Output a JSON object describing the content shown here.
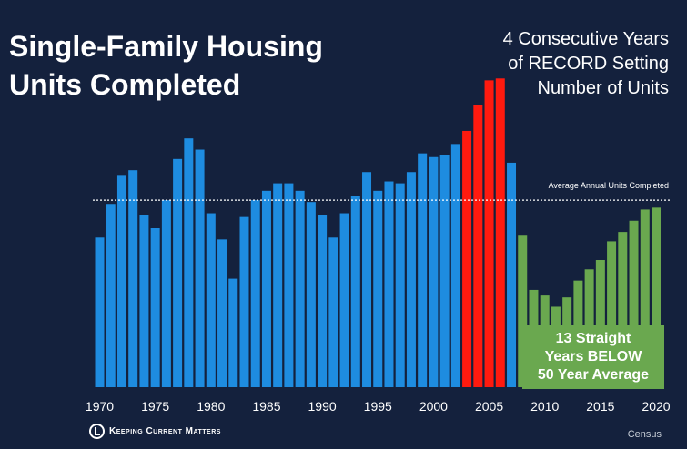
{
  "title_line1": "Single-Family Housing",
  "title_line2": "Units Completed",
  "callout": {
    "line1": "4 Consecutive Years",
    "line2": "of RECORD Setting",
    "line3": "Number of Units"
  },
  "average_label": "Average Annual Units Completed",
  "below_box": {
    "line1": "13 Straight",
    "line2": "Years BELOW",
    "line3": "50 Year Average"
  },
  "logo_text": "Keeping Current Matters",
  "source": "Census",
  "colors": {
    "background": "#14213d",
    "normal": "#1e8ce0",
    "record": "#ff1a0f",
    "below": "#6aa84f",
    "average_line": "#ffffff"
  },
  "chart_data": {
    "type": "bar",
    "x": [
      1970,
      1971,
      1972,
      1973,
      1974,
      1975,
      1976,
      1977,
      1978,
      1979,
      1980,
      1981,
      1982,
      1983,
      1984,
      1985,
      1986,
      1987,
      1988,
      1989,
      1990,
      1991,
      1992,
      1993,
      1994,
      1995,
      1996,
      1997,
      1998,
      1999,
      2000,
      2001,
      2002,
      2003,
      2004,
      2005,
      2006,
      2007,
      2008,
      2009,
      2010,
      2011,
      2012,
      2013,
      2014,
      2015,
      2016,
      2017,
      2018,
      2019,
      2020
    ],
    "values": [
      800,
      980,
      1130,
      1160,
      920,
      850,
      1000,
      1220,
      1330,
      1270,
      930,
      790,
      580,
      910,
      1000,
      1050,
      1090,
      1090,
      1050,
      990,
      920,
      800,
      930,
      1020,
      1150,
      1050,
      1100,
      1090,
      1150,
      1250,
      1230,
      1240,
      1300,
      1370,
      1510,
      1640,
      1650,
      1200,
      810,
      520,
      490,
      430,
      480,
      570,
      630,
      680,
      780,
      830,
      890,
      950,
      960
    ],
    "categories_type": [
      "normal",
      "normal",
      "normal",
      "normal",
      "normal",
      "normal",
      "normal",
      "normal",
      "normal",
      "normal",
      "normal",
      "normal",
      "normal",
      "normal",
      "normal",
      "normal",
      "normal",
      "normal",
      "normal",
      "normal",
      "normal",
      "normal",
      "normal",
      "normal",
      "normal",
      "normal",
      "normal",
      "normal",
      "normal",
      "normal",
      "normal",
      "normal",
      "normal",
      "record",
      "record",
      "record",
      "record",
      "normal",
      "below",
      "below",
      "below",
      "below",
      "below",
      "below",
      "below",
      "below",
      "below",
      "below",
      "below",
      "below",
      "below"
    ],
    "average": 1000,
    "xticks": [
      1970,
      1975,
      1980,
      1985,
      1990,
      1995,
      2000,
      2005,
      2010,
      2015,
      2020
    ],
    "ylim": [
      0,
      1700
    ],
    "grid": false,
    "legend": "none"
  }
}
